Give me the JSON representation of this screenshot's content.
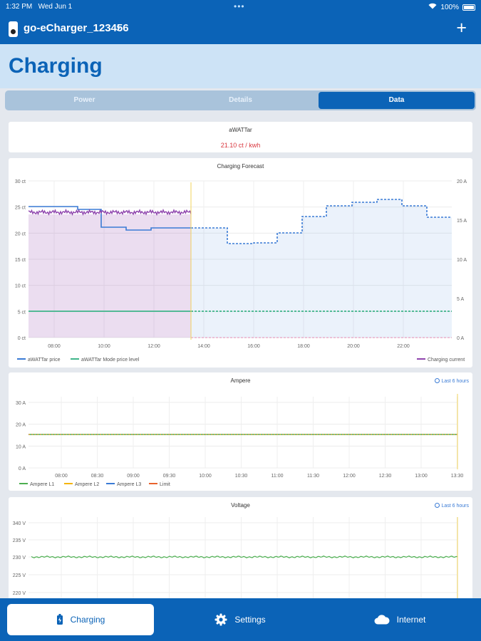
{
  "status": {
    "time": "1:32 PM",
    "date": "Wed Jun 1",
    "battery": "100%"
  },
  "header": {
    "device": "go-eCharger_123456"
  },
  "page": {
    "title": "Charging"
  },
  "segments": [
    {
      "label": "Power",
      "active": false
    },
    {
      "label": "Details",
      "active": false
    },
    {
      "label": "Data",
      "active": true
    }
  ],
  "awattar": {
    "title": "aWATTar",
    "price": "21.10 ct / kwh"
  },
  "forecast": {
    "title": "Charging Forecast",
    "legend": {
      "price": "aWATTar price",
      "mode": "aWATTar Mode price level",
      "current": "Charging current"
    }
  },
  "ampere": {
    "title": "Ampere",
    "last": "Last 6 hours",
    "legend": {
      "l1": "Ampere L1",
      "l2": "Ampere L2",
      "l3": "Ampere L3",
      "limit": "Limit"
    }
  },
  "voltage": {
    "title": "Voltage",
    "last": "Last 6 hours"
  },
  "tabs": {
    "charging": "Charging",
    "settings": "Settings",
    "internet": "Internet"
  },
  "colors": {
    "primary": "#0b63b7",
    "price": "#3a7bd5",
    "mode": "#3fb58a",
    "current": "#8e44ad",
    "l1": "#4caf50",
    "l2": "#f5b400",
    "l3": "#3a7bd5",
    "limit": "#e8622c",
    "price_text": "#d9363e"
  },
  "chart_data": [
    {
      "type": "line",
      "title": "Charging Forecast",
      "x": [
        "07:30",
        "08:00",
        "09:00",
        "10:00",
        "11:00",
        "12:00",
        "13:30",
        "14:00",
        "14:30",
        "15:00",
        "16:00",
        "17:00",
        "18:00",
        "19:00",
        "20:00",
        "21:00",
        "22:00",
        "23:00",
        "24:00"
      ],
      "y_left": {
        "unit": "ct",
        "ticks": [
          "0 ct",
          "5 ct",
          "10 ct",
          "15 ct",
          "20 ct",
          "25 ct",
          "30 ct"
        ],
        "ylim": [
          0,
          30
        ]
      },
      "y_right": {
        "unit": "A",
        "ticks": [
          "0 A",
          "5 A",
          "10 A",
          "15 A",
          "20 A"
        ],
        "ylim": [
          0,
          20
        ]
      },
      "x_ticks": [
        "08:00",
        "10:00",
        "12:00",
        "14:00",
        "16:00",
        "18:00",
        "20:00",
        "22:00"
      ],
      "series": [
        {
          "name": "aWATTar price",
          "axis": "left",
          "values": [
            25,
            24.5,
            23,
            21,
            20.6,
            21,
            21,
            21,
            20.7,
            18,
            18.2,
            20,
            23,
            25.5,
            26,
            26.5,
            25,
            23,
            23
          ]
        },
        {
          "name": "aWATTar Mode price level",
          "axis": "left",
          "values": [
            5,
            5,
            5,
            5,
            5,
            5,
            5,
            5,
            5,
            5,
            5,
            5,
            5,
            5,
            5,
            5,
            5,
            5,
            5
          ]
        },
        {
          "name": "Charging current",
          "axis": "right",
          "values": [
            16,
            16,
            16,
            16,
            16,
            16,
            16,
            0,
            0,
            0,
            0,
            0,
            0,
            0,
            0,
            0,
            0,
            0,
            0
          ]
        }
      ],
      "legend": "bottom"
    },
    {
      "type": "line",
      "title": "Ampere",
      "x_ticks": [
        "08:00",
        "08:30",
        "09:00",
        "09:30",
        "10:00",
        "10:30",
        "11:00",
        "11:30",
        "12:00",
        "12:30",
        "13:00",
        "13:30"
      ],
      "y_ticks": [
        "0 A",
        "10 A",
        "20 A",
        "30 A"
      ],
      "ylim": [
        0,
        30
      ],
      "series": [
        {
          "name": "Ampere L1",
          "values": [
            16,
            16
          ]
        },
        {
          "name": "Ampere L2",
          "values": [
            16,
            16
          ]
        },
        {
          "name": "Ampere L3",
          "values": [
            16,
            16
          ]
        },
        {
          "name": "Limit",
          "values": [
            16,
            16
          ]
        }
      ],
      "legend": "bottom"
    },
    {
      "type": "line",
      "title": "Voltage",
      "y_ticks": [
        "220 V",
        "225 V",
        "230 V",
        "235 V",
        "340 V"
      ],
      "ylim": [
        220,
        240
      ],
      "series": [
        {
          "name": "Voltage",
          "values": [
            230,
            230
          ]
        }
      ]
    }
  ]
}
